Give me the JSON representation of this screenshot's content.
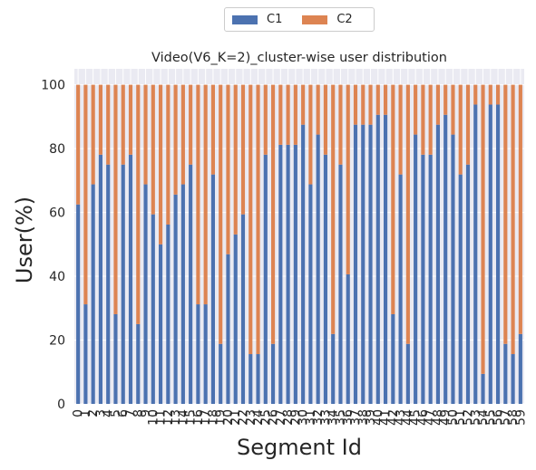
{
  "chart_data": {
    "type": "bar",
    "stacked": true,
    "title": "Video(V6_K=2)_cluster-wise user distribution",
    "xlabel": "Segment Id",
    "ylabel": "User(%)",
    "ylim": [
      0,
      105
    ],
    "yticks": [
      0,
      20,
      40,
      60,
      80,
      100
    ],
    "grid": true,
    "legend_position": "top-center",
    "categories": [
      "0",
      "1",
      "2",
      "3",
      "4",
      "5",
      "6",
      "7",
      "8",
      "9",
      "10",
      "11",
      "12",
      "13",
      "14",
      "15",
      "16",
      "17",
      "18",
      "19",
      "20",
      "21",
      "22",
      "23",
      "24",
      "25",
      "26",
      "27",
      "28",
      "29",
      "30",
      "31",
      "32",
      "33",
      "34",
      "35",
      "36",
      "37",
      "38",
      "39",
      "40",
      "41",
      "42",
      "43",
      "44",
      "45",
      "46",
      "47",
      "48",
      "49",
      "50",
      "51",
      "52",
      "53",
      "54",
      "55",
      "56",
      "57",
      "58",
      "59"
    ],
    "series": [
      {
        "name": "C1",
        "color": "#4c72b0",
        "values": [
          62.5,
          31.2,
          68.8,
          78.1,
          75.0,
          28.1,
          75.0,
          78.1,
          25.0,
          68.8,
          59.4,
          50.0,
          56.2,
          65.6,
          68.8,
          75.0,
          31.2,
          31.2,
          71.9,
          18.8,
          46.9,
          53.1,
          59.4,
          15.6,
          15.6,
          78.1,
          18.8,
          81.2,
          81.2,
          81.2,
          87.5,
          68.8,
          84.4,
          78.1,
          21.9,
          75.0,
          40.6,
          87.5,
          87.5,
          87.5,
          90.6,
          90.6,
          28.1,
          71.9,
          18.8,
          84.4,
          78.1,
          78.1,
          87.5,
          90.6,
          84.4,
          71.9,
          75.0,
          93.8,
          9.4,
          93.8,
          93.8,
          18.8,
          15.6,
          21.9
        ]
      },
      {
        "name": "C2",
        "color": "#dd8452",
        "values": [
          37.5,
          68.8,
          31.2,
          21.9,
          25.0,
          71.9,
          25.0,
          21.9,
          75.0,
          31.2,
          40.6,
          50.0,
          43.8,
          34.4,
          31.2,
          25.0,
          68.8,
          68.8,
          28.1,
          81.2,
          53.1,
          46.9,
          40.6,
          84.4,
          84.4,
          21.9,
          81.2,
          18.8,
          18.8,
          18.8,
          12.5,
          31.2,
          15.6,
          21.9,
          78.1,
          25.0,
          59.4,
          12.5,
          12.5,
          12.5,
          9.4,
          9.4,
          71.9,
          28.1,
          81.2,
          15.6,
          21.9,
          21.9,
          12.5,
          9.4,
          15.6,
          28.1,
          25.0,
          6.2,
          90.6,
          6.2,
          6.2,
          81.2,
          84.4,
          78.1
        ]
      }
    ]
  }
}
